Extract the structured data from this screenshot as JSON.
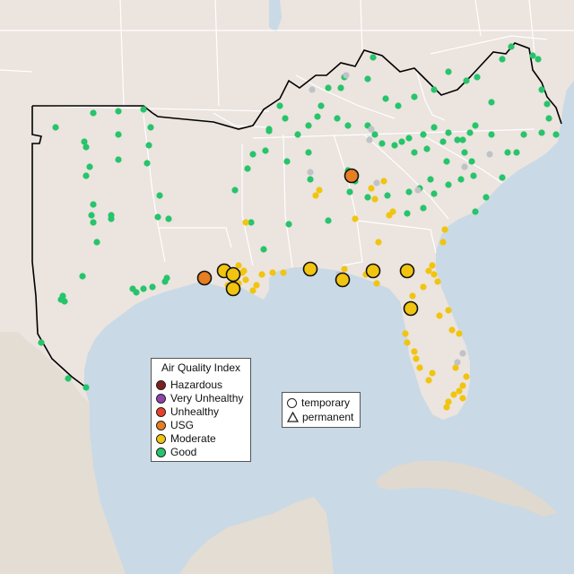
{
  "map": {
    "region": "Southeastern United States",
    "colors": {
      "land": "#ebe4df",
      "water": "#c9d9e6",
      "mexico_land": "#e3ddd4",
      "cuba_land": "#e0d9cf",
      "state_border": "#ffffff",
      "region_outline": "#000000",
      "Hazardous": "#7e2020",
      "Very Unhealthy": "#8e44ad",
      "Unhealthy": "#e8412b",
      "USG": "#e67e22",
      "Moderate": "#f1c40f",
      "Good": "#27c46b",
      "No data": "#bfc3c7"
    }
  },
  "aqi_legend": {
    "title": "Air Quality Index",
    "items": [
      {
        "label": "Hazardous",
        "color": "#7e2020"
      },
      {
        "label": "Very Unhealthy",
        "color": "#8e44ad"
      },
      {
        "label": "Unhealthy",
        "color": "#e8412b"
      },
      {
        "label": "USG",
        "color": "#e67e22"
      },
      {
        "label": "Moderate",
        "color": "#f1c40f"
      },
      {
        "label": "Good",
        "color": "#27c46b"
      }
    ]
  },
  "type_legend": {
    "items": [
      {
        "label": "temporary",
        "shape": "circle"
      },
      {
        "label": "permanent",
        "shape": "triangle"
      }
    ]
  }
}
